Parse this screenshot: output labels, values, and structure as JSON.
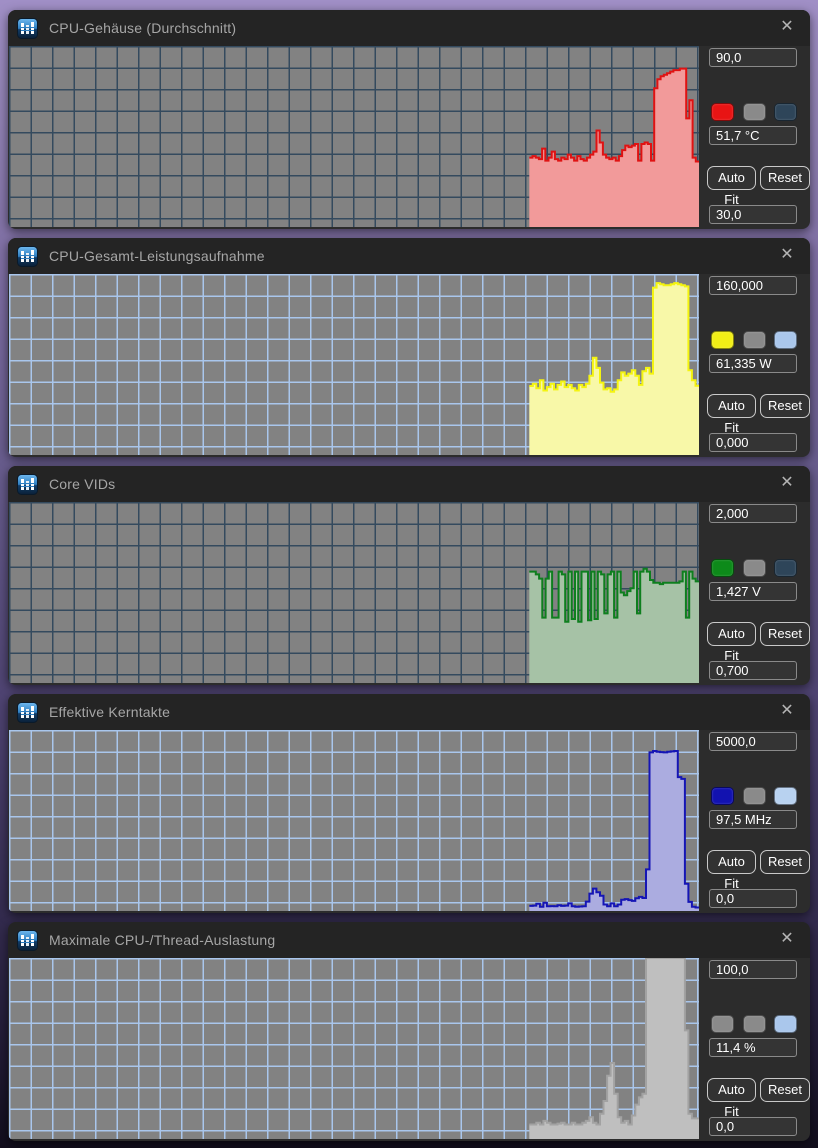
{
  "ui": {
    "close_label": "✕",
    "autofit_label": "Auto Fit",
    "reset_label": "Reset"
  },
  "windows": [
    {
      "title": "CPU-Gehäuse (Durchschnitt)",
      "panel": {
        "y_max_label": "90,0",
        "y_min_label": "30,0",
        "value_label": "51,7 °C",
        "swatches": [
          "#e81414",
          "#8a8a8a",
          "#2e4559"
        ]
      }
    },
    {
      "title": "CPU-Gesamt-Leistungsaufnahme",
      "panel": {
        "y_max_label": "160,000",
        "y_min_label": "0,000",
        "value_label": "61,335 W",
        "swatches": [
          "#f2ef16",
          "#8a8a8a",
          "#aac7ec"
        ]
      }
    },
    {
      "title": "Core VIDs",
      "panel": {
        "y_max_label": "2,000",
        "y_min_label": "0,700",
        "value_label": "1,427 V",
        "swatches": [
          "#0d8a1a",
          "#8a8a8a",
          "#2e4559"
        ]
      }
    },
    {
      "title": "Effektive Kerntakte",
      "panel": {
        "y_max_label": "5000,0",
        "y_min_label": "0,0",
        "value_label": "97,5 MHz",
        "swatches": [
          "#1212b0",
          "#8a8a8a",
          "#b8d2f0"
        ]
      }
    },
    {
      "title": "Maximale CPU-/Thread-Auslastung",
      "panel": {
        "y_max_label": "100,0",
        "y_min_label": "0,0",
        "value_label": "11,4 %",
        "swatches": [
          "#8a8a8a",
          "#8a8a8a",
          "#aac7ec"
        ]
      }
    }
  ],
  "chart_data": [
    {
      "type": "area-step",
      "title": "CPU-Gehäuse (Durchschnitt)",
      "unit": "°C",
      "y_min": 30,
      "y_max": 90,
      "current": 51.7,
      "x_start_frac": 0.754,
      "plot_bg": "#828282",
      "grid_color": "#344a5e",
      "line_color": "#e01212",
      "fill_color": "#f29a9a",
      "values": [
        53,
        53.5,
        53,
        52.5,
        56,
        52,
        53,
        55,
        52.5,
        52,
        53,
        52.5,
        54,
        53,
        52,
        53.5,
        52.5,
        52,
        53,
        54,
        55,
        62,
        58,
        54,
        53,
        52.5,
        53,
        52,
        53.5,
        55.5,
        57,
        56.5,
        57,
        57.5,
        52,
        57.5,
        58,
        57.5,
        52,
        76,
        79,
        80,
        80.5,
        81,
        81.5,
        82,
        82,
        82.5,
        82.5,
        66,
        72,
        53,
        51.7
      ]
    },
    {
      "type": "area-step",
      "title": "CPU-Gesamt-Leistungsaufnahme",
      "unit": "W",
      "y_min": 0,
      "y_max": 160,
      "current": 61.335,
      "x_start_frac": 0.754,
      "plot_bg": "#828282",
      "grid_color": "#a9c6ec",
      "line_color": "#f4f410",
      "fill_color": "#f8f8a8",
      "values": [
        61,
        63,
        59,
        66,
        57,
        60,
        63,
        58,
        62,
        65,
        60,
        62,
        59,
        57,
        62,
        60,
        63,
        70,
        86,
        77,
        64,
        58,
        59,
        56,
        58,
        66,
        73,
        70,
        72,
        75,
        70,
        62,
        74,
        77,
        72,
        148,
        152,
        151,
        150,
        150,
        151,
        152,
        151,
        150,
        149,
        75,
        66,
        61.3
      ]
    },
    {
      "type": "area-step",
      "title": "Core VIDs",
      "unit": "V",
      "y_min": 0.7,
      "y_max": 2.0,
      "current": 1.427,
      "x_start_frac": 0.754,
      "plot_bg": "#828282",
      "grid_color": "#344a5e",
      "line_color": "#0e7f1e",
      "fill_color": "#a6c2a6",
      "values": [
        1.5,
        1.5,
        1.48,
        1.45,
        1.17,
        1.45,
        1.5,
        1.17,
        1.17,
        1.5,
        1.48,
        1.14,
        1.5,
        1.16,
        1.5,
        1.14,
        1.5,
        1.5,
        1.15,
        1.5,
        1.16,
        1.5,
        1.48,
        1.2,
        1.48,
        1.5,
        1.17,
        1.5,
        1.35,
        1.33,
        1.36,
        1.38,
        1.5,
        1.2,
        1.5,
        1.52,
        1.5,
        1.44,
        1.42,
        1.42,
        1.41,
        1.42,
        1.42,
        1.42,
        1.42,
        1.42,
        1.43,
        1.5,
        1.17,
        1.5,
        1.45,
        1.43
      ]
    },
    {
      "type": "area-step",
      "title": "Effektive Kerntakte",
      "unit": "MHz",
      "y_min": 0,
      "y_max": 5000,
      "current": 97.5,
      "x_start_frac": 0.754,
      "plot_bg": "#828282",
      "grid_color": "#a9c6ec",
      "line_color": "#1515b5",
      "fill_color": "#abace0",
      "values": [
        140,
        150,
        200,
        120,
        230,
        130,
        135,
        130,
        160,
        140,
        150,
        210,
        130,
        120,
        125,
        130,
        260,
        480,
        620,
        520,
        420,
        180,
        130,
        210,
        130,
        180,
        310,
        330,
        300,
        280,
        350,
        390,
        360,
        1150,
        4380,
        4420,
        4400,
        4390,
        4380,
        4400,
        4410,
        4420,
        3700,
        3650,
        750,
        250,
        120,
        98
      ]
    },
    {
      "type": "area-step",
      "title": "Maximale CPU-/Thread-Auslastung",
      "unit": "%",
      "y_min": 0,
      "y_max": 100,
      "current": 11.4,
      "x_start_frac": 0.754,
      "plot_bg": "#828282",
      "grid_color": "#a9c6ec",
      "line_color": "#a2a2a2",
      "fill_color": "#bfbfbf",
      "values": [
        8,
        8,
        9,
        8,
        10,
        9,
        8,
        8,
        8.5,
        9,
        8,
        8,
        9,
        8,
        8,
        9,
        10,
        12,
        9,
        8,
        14,
        21,
        35,
        42,
        25,
        12,
        9,
        10,
        8,
        13,
        19,
        23,
        25,
        100,
        100,
        100,
        100,
        100,
        100,
        100,
        100,
        100,
        100,
        100,
        60,
        14,
        11.4,
        11.4
      ]
    }
  ]
}
